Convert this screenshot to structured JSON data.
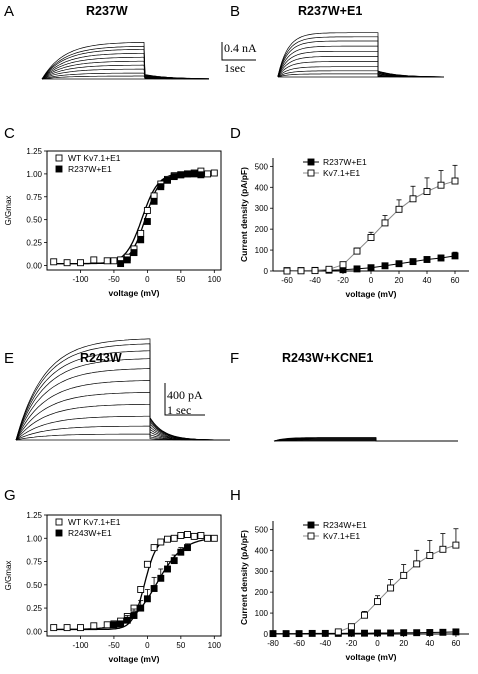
{
  "panels": {
    "A": {
      "letter": "A",
      "title": "R237W"
    },
    "B": {
      "letter": "B",
      "title": "R237W+E1",
      "scale_current": "0.4 nA",
      "scale_time": "1sec"
    },
    "C": {
      "letter": "C"
    },
    "D": {
      "letter": "D"
    },
    "E": {
      "letter": "E",
      "title": "R243W",
      "scale_current": "400 pA",
      "scale_time": "1 sec"
    },
    "F": {
      "letter": "F",
      "title": "R243W+KCNE1"
    },
    "G": {
      "letter": "G"
    },
    "H": {
      "letter": "H"
    }
  },
  "chart_data": [
    {
      "panel": "C",
      "type": "scatter",
      "xlabel": "voltage (mV)",
      "ylabel": "G/Gmax",
      "xlim": [
        -150,
        110
      ],
      "ylim": [
        -0.05,
        1.25
      ],
      "xticks": [
        -100,
        -50,
        0,
        50,
        100
      ],
      "yticks": [
        "0.00",
        "0.25",
        "0.50",
        "0.75",
        "1.00",
        "1.25"
      ],
      "grid": false,
      "legend": "top-left",
      "series": [
        {
          "name": "WT Kv7.1+E1",
          "marker": "open-square",
          "fit": "boltzmann",
          "x": [
            -140,
            -120,
            -100,
            -80,
            -60,
            -50,
            -40,
            -30,
            -20,
            -10,
            0,
            10,
            20,
            30,
            40,
            50,
            60,
            70,
            80,
            90,
            100
          ],
          "y": [
            0.04,
            0.03,
            0.03,
            0.06,
            0.05,
            0.05,
            0.06,
            0.09,
            0.18,
            0.35,
            0.6,
            0.76,
            0.89,
            0.94,
            0.98,
            0.99,
            1.0,
            1.01,
            1.03,
            1.0,
            1.01
          ]
        },
        {
          "name": "R237W+E1",
          "marker": "filled-square",
          "fit": "boltzmann",
          "x": [
            -40,
            -30,
            -20,
            -10,
            0,
            10,
            20,
            30,
            40,
            50,
            60,
            70,
            80
          ],
          "y": [
            0.02,
            0.06,
            0.14,
            0.28,
            0.48,
            0.7,
            0.86,
            0.93,
            0.97,
            0.99,
            1.0,
            1.0,
            0.99
          ]
        }
      ]
    },
    {
      "panel": "D",
      "type": "line",
      "xlabel": "voltage (mV)",
      "ylabel": "Current density (pA/pF)",
      "xlim": [
        -70,
        70
      ],
      "ylim": [
        0,
        540
      ],
      "xticks": [
        -60,
        -40,
        -20,
        0,
        20,
        40,
        60
      ],
      "yticks": [
        0,
        100,
        200,
        300,
        400,
        500
      ],
      "grid": false,
      "legend": "top-left",
      "series": [
        {
          "name": "R237W+E1",
          "marker": "filled-square",
          "x": [
            -60,
            -50,
            -40,
            -30,
            -20,
            -10,
            0,
            10,
            20,
            30,
            40,
            50,
            60
          ],
          "y": [
            2,
            2,
            3,
            4,
            6,
            10,
            16,
            25,
            35,
            45,
            55,
            62,
            72
          ],
          "err": [
            0,
            0,
            0,
            0,
            0,
            2,
            4,
            6,
            8,
            10,
            12,
            15,
            18
          ]
        },
        {
          "name": "Kv7.1+E1",
          "marker": "open-square",
          "x": [
            -60,
            -50,
            -40,
            -30,
            -20,
            -10,
            0,
            10,
            20,
            30,
            40,
            50,
            60
          ],
          "y": [
            0,
            1,
            2,
            8,
            30,
            95,
            160,
            230,
            295,
            345,
            380,
            410,
            430
          ],
          "err": [
            0,
            0,
            0,
            3,
            8,
            15,
            25,
            35,
            45,
            60,
            65,
            70,
            75
          ]
        }
      ]
    },
    {
      "panel": "G",
      "type": "scatter",
      "xlabel": "voltage (mV)",
      "ylabel": "G/Gmax",
      "xlim": [
        -150,
        110
      ],
      "ylim": [
        -0.05,
        1.25
      ],
      "xticks": [
        -100,
        -50,
        0,
        50,
        100
      ],
      "yticks": [
        "0.00",
        "0.25",
        "0.50",
        "0.75",
        "1.00",
        "1.25"
      ],
      "grid": false,
      "legend": "top-left",
      "series": [
        {
          "name": "WT Kv7.1+E1",
          "marker": "open-square",
          "fit": "boltzmann",
          "x": [
            -140,
            -120,
            -100,
            -80,
            -60,
            -50,
            -40,
            -30,
            -20,
            -10,
            0,
            10,
            20,
            30,
            40,
            50,
            60,
            70,
            80,
            90,
            100
          ],
          "y": [
            0.04,
            0.04,
            0.04,
            0.06,
            0.07,
            0.08,
            0.11,
            0.16,
            0.25,
            0.45,
            0.72,
            0.9,
            0.96,
            0.99,
            1.0,
            1.03,
            1.04,
            1.02,
            1.03,
            1.0,
            1.0
          ]
        },
        {
          "name": "R243W+E1",
          "marker": "filled-square",
          "fit": "boltzmann",
          "x": [
            -50,
            -40,
            -30,
            -20,
            -10,
            0,
            10,
            20,
            30,
            40,
            50,
            60
          ],
          "y": [
            0.07,
            0.08,
            0.12,
            0.17,
            0.25,
            0.35,
            0.46,
            0.57,
            0.67,
            0.76,
            0.85,
            0.9
          ],
          "err": [
            0.02,
            0.02,
            0.05,
            0.07,
            0.08,
            0.1,
            0.12,
            0.1,
            0.08,
            0.06,
            0.05,
            0.04
          ]
        }
      ]
    },
    {
      "panel": "H",
      "type": "line",
      "xlabel": "voltage (mV)",
      "ylabel": "Current density (pA/pF)",
      "xlim": [
        -80,
        70
      ],
      "ylim": [
        0,
        540
      ],
      "xticks": [
        -80,
        -60,
        -40,
        -20,
        0,
        20,
        40,
        60
      ],
      "yticks": [
        0,
        100,
        200,
        300,
        400,
        500
      ],
      "grid": false,
      "legend": "top-left",
      "series": [
        {
          "name": "R234W+E1",
          "marker": "filled-square",
          "x": [
            -80,
            -70,
            -60,
            -50,
            -40,
            -30,
            -20,
            -10,
            0,
            10,
            20,
            30,
            40,
            50,
            60
          ],
          "y": [
            2,
            2,
            2,
            3,
            3,
            3,
            4,
            4,
            5,
            5,
            6,
            6,
            7,
            8,
            10
          ],
          "err": [
            0,
            0,
            0,
            0,
            0,
            0,
            0,
            0,
            1,
            1,
            1,
            1,
            2,
            2,
            3
          ]
        },
        {
          "name": "Kv7.1+E1",
          "marker": "open-square",
          "x": [
            -30,
            -20,
            -10,
            0,
            10,
            20,
            30,
            40,
            50,
            60
          ],
          "y": [
            10,
            35,
            90,
            155,
            220,
            280,
            335,
            375,
            405,
            425
          ],
          "err": [
            3,
            8,
            18,
            28,
            40,
            52,
            65,
            72,
            75,
            78
          ]
        }
      ]
    }
  ]
}
